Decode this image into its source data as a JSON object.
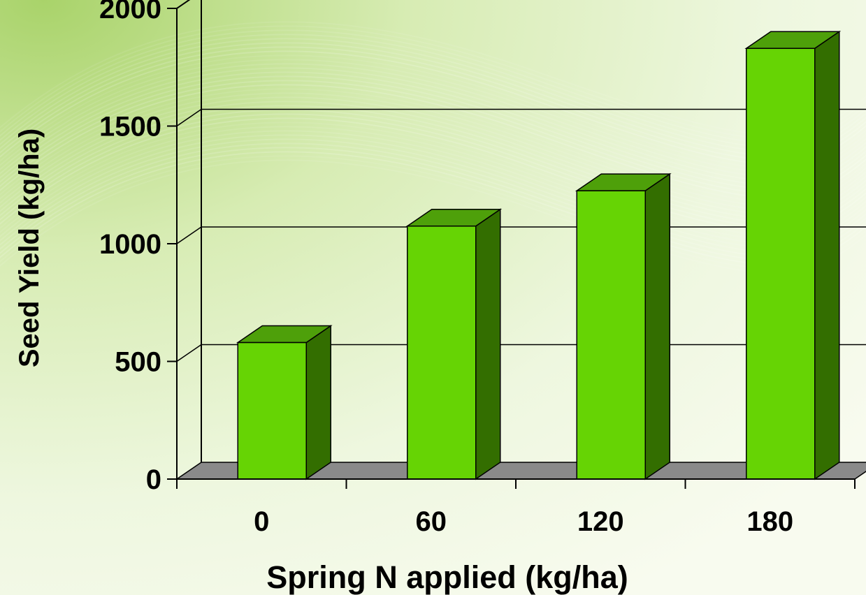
{
  "chart_data": {
    "type": "bar",
    "style": "3d-column",
    "categories": [
      "0",
      "60",
      "120",
      "180"
    ],
    "values": [
      580,
      1075,
      1225,
      1830
    ],
    "xlabel": "Spring N applied (kg/ha)",
    "ylabel": "Seed Yield (kg/ha)",
    "ylim": [
      0,
      2000
    ],
    "yticks": [
      0,
      500,
      1000,
      1500,
      2000
    ],
    "grid": true,
    "legend": "none",
    "colors": {
      "bar_front": "#66d404",
      "bar_top": "#4ea00a",
      "bar_side": "#336e00",
      "floor": "#8a8a8a",
      "background": "#f1f8e3"
    }
  }
}
